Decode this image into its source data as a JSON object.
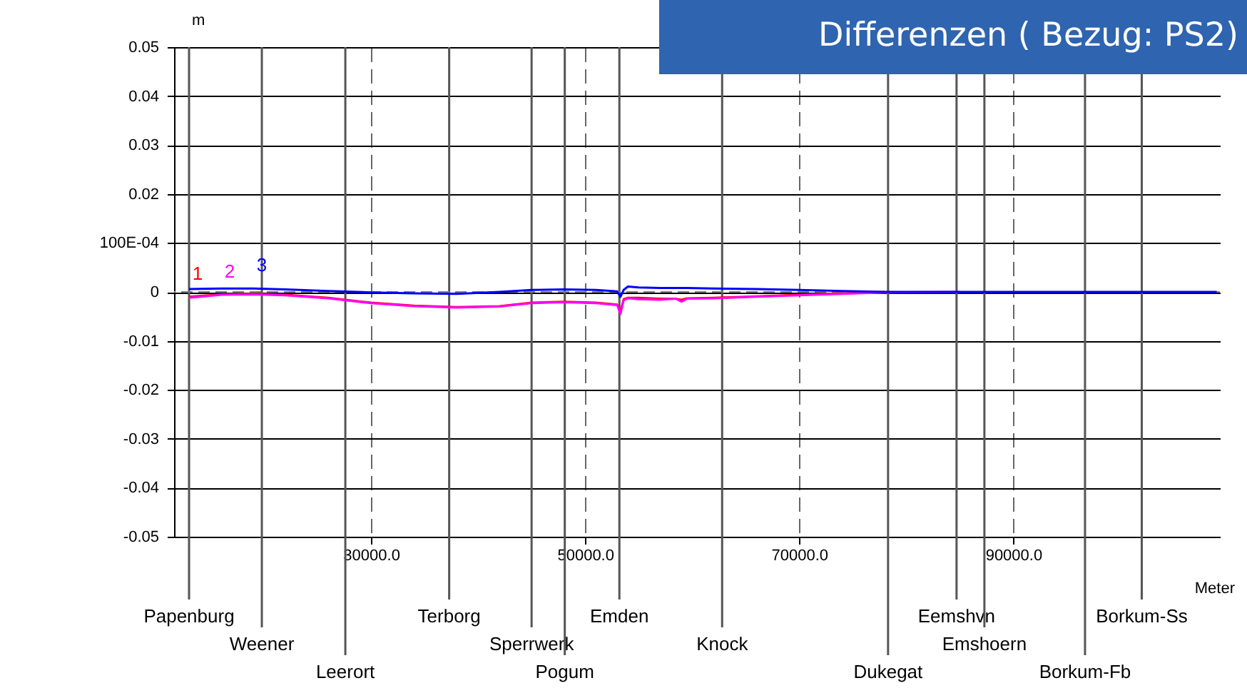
{
  "chart_data": {
    "type": "line",
    "title": "Differenzen ( Bezug: PS2)",
    "xlabel": "Meter",
    "ylabel": "m",
    "x": [
      13000,
      16000,
      19000,
      22000,
      26000,
      30000,
      34000,
      38000,
      42000,
      45000,
      48000,
      51000,
      53000,
      53300,
      53600,
      54000,
      55000,
      57000,
      58500,
      59000,
      59500,
      62000,
      66000,
      70000,
      74000,
      78000,
      85000,
      95000,
      109000
    ],
    "series": [
      {
        "name": "1",
        "color": "#ff0000",
        "values": [
          -0.001,
          -0.0005,
          -0.0004,
          -0.0006,
          -0.0012,
          -0.0022,
          -0.0028,
          -0.0031,
          -0.0029,
          -0.0022,
          -0.002,
          -0.0022,
          -0.0026,
          -0.004,
          -0.0015,
          -0.0012,
          -0.0012,
          -0.0014,
          -0.0014,
          -0.0016,
          -0.0013,
          -0.0012,
          -0.0009,
          -0.0006,
          -0.0003,
          0,
          null,
          null,
          null
        ]
      },
      {
        "name": "2",
        "color": "#ff00ff",
        "values": [
          -0.0012,
          -0.0006,
          -0.0005,
          -0.0007,
          -0.0013,
          -0.0023,
          -0.0029,
          -0.0032,
          -0.003,
          -0.0023,
          -0.0021,
          -0.0023,
          -0.0027,
          -0.0045,
          -0.0017,
          -0.0013,
          -0.0015,
          -0.0016,
          -0.0014,
          -0.002,
          -0.0014,
          -0.0013,
          -0.001,
          -0.0007,
          -0.0004,
          -0.0001,
          0,
          null,
          null
        ]
      },
      {
        "name": "3",
        "color": "#0000ff",
        "values": [
          0.0006,
          0.0007,
          0.0007,
          0.0005,
          0.0002,
          -0.0001,
          -0.0003,
          -0.0004,
          0,
          0.0004,
          0.0005,
          0.0004,
          0.0001,
          -0.001,
          0.0004,
          0.0011,
          0.0009,
          0.0008,
          0.0008,
          0.0008,
          0.0008,
          0.0007,
          0.0006,
          0.0004,
          0.0002,
          0,
          0,
          0,
          0
        ]
      }
    ],
    "xlim": [
      11600,
      109300
    ],
    "ylim": [
      -0.05,
      0.05
    ],
    "xticks": [
      {
        "value": 30000,
        "label": "30000.0"
      },
      {
        "value": 50000,
        "label": "50000.0"
      },
      {
        "value": 70000,
        "label": "70000.0"
      },
      {
        "value": 90000,
        "label": "90000.0"
      }
    ],
    "yticks": [
      -0.05,
      -0.04,
      -0.03,
      -0.02,
      -0.01,
      0,
      {
        "value": 0.01,
        "label": "100E-04"
      },
      0.02,
      0.03,
      0.04,
      0.05
    ],
    "grid": true,
    "ref_lines": [
      {
        "axis": "y",
        "value": 0,
        "line_style": "dashed",
        "color": "#808080"
      },
      {
        "axis": "x",
        "value": 13000,
        "label": "Papenburg"
      },
      {
        "axis": "x",
        "value": 19800,
        "label": "Weener"
      },
      {
        "axis": "x",
        "value": 27600,
        "label": "Leerort"
      },
      {
        "axis": "x",
        "value": 37300,
        "label": "Terborg"
      },
      {
        "axis": "x",
        "value": 45000,
        "label": "Sperrwerk"
      },
      {
        "axis": "x",
        "value": 48100,
        "label": "Pogum"
      },
      {
        "axis": "x",
        "value": 53200,
        "label": "Emden"
      },
      {
        "axis": "x",
        "value": 62800,
        "label": "Knock"
      },
      {
        "axis": "x",
        "value": 78300,
        "label": "Dukegat"
      },
      {
        "axis": "x",
        "value": 84700,
        "label": "Eemshvn"
      },
      {
        "axis": "x",
        "value": 87300,
        "label": "Emshoern"
      },
      {
        "axis": "x",
        "value": 96700,
        "label": "Borkum-Fb"
      },
      {
        "axis": "x",
        "value": 102000,
        "label": "Borkum-Ss"
      }
    ]
  }
}
